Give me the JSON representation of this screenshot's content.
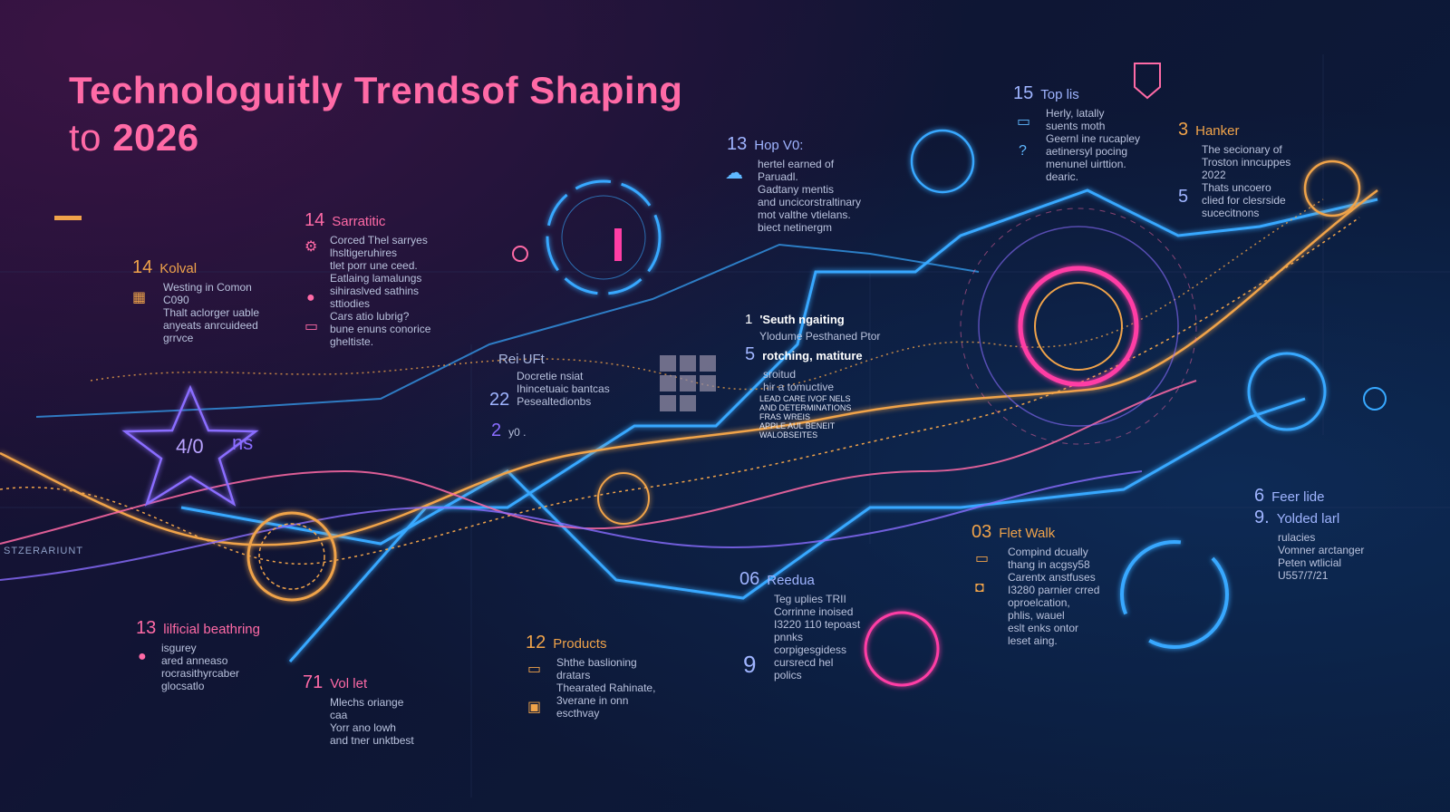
{
  "title": {
    "line1": "Technologuitly Trendsof Shaping",
    "line2_prefix": "to ",
    "line2_year": "2026"
  },
  "blocks": {
    "b14k": {
      "num": "14",
      "label": "Kolval",
      "text": "Westing in Comon\nC090\nThalt aclorger uable\nanyeats anrcuideed\ngrrvce"
    },
    "b14s": {
      "num": "14",
      "label": "Sarratitic",
      "text": "Corced Thel sarryes\nlhsltigeruhires\ntlet porr une ceed.\nEatlaing lamalungs\nsihiraslved sathins\nsttiodies\nCars atio lubrig?\nbune enuns conorice\ngheltiste."
    },
    "b13h": {
      "num": "13",
      "label": "Hop V0:",
      "text": "hertel earned of\nParuadl.\nGadtany mentis\nand uncicorstraltinary\nmot valthe vtielans.\nbiect netinergm"
    },
    "b15": {
      "num": "15",
      "label": "Top lis",
      "text": "Herly, latally\nsuents moth\nGeernl ine rucapley\naetinersyl pocing\nmenunel uirttion.\ndearic."
    },
    "b3": {
      "num": "3",
      "label": "Hanker",
      "text": "The secionary of\nTroston inncuppes\n2022\nThats uncoero\nclied for clesrside\nsucecitnons"
    },
    "b5n": {
      "num": "5"
    },
    "bsouth": {
      "num": "1",
      "label": "'Seuth ngaiting",
      "text": "Ylodume Pesthaned Ptor"
    },
    "bmat": {
      "num": "5",
      "label": "rotching, matiture",
      "text": "sroitud\nhir a tomuctive"
    },
    "bcaps": {
      "text": "LEAD CARE IVOF NELS\nAND DETERMINATIONS\nFRAS WREIS\nAPPLE AUL BENEIT\nWALOBSEITES"
    },
    "brei": {
      "label": "Rei UFt",
      "text": "Docretie nsiat\nIhincetuaic bantcas"
    },
    "b22": {
      "num": "22",
      "text": "Pesealtedionbs"
    },
    "b2": {
      "num": "2",
      "text": "y0 ."
    },
    "big2": "2",
    "b40": {
      "num": "4/0"
    },
    "bns": {
      "label": "ns"
    },
    "b6": {
      "num": "6",
      "label": "Feer lide"
    },
    "b9": {
      "num": "9.",
      "label": "Yolded larl",
      "text": "rulacies\nVomner arctanger\nPeten wtlicial\nU557/7/21"
    },
    "b03": {
      "num": "03",
      "label": "Flet Walk",
      "text": "Compind dcually\nthang in acgsy58\nCarentx anstfuses\nI3280 parnier crred\noproelcation,\nphlis, wauel\neslt enks ontor\nleset aing."
    },
    "b06": {
      "num": "06",
      "label": "Reedua",
      "text": "Teg uplies TRII\nCorrinne inoised\nI3220 110 tepoast\npnnks\ncorpigesgidess\ncursrecd hel\npolics"
    },
    "b9b": {
      "num": "9"
    },
    "b12": {
      "num": "12",
      "label": "Products",
      "text": "Shthe baslioning\ndratars\nThearated Rahinate,\n3verane in onn\nescthvay"
    },
    "b13a": {
      "num": "13",
      "label": "lilficial beathring",
      "text": "isgurey\nared anneaso\nrocrasithyrcaber\nglocsatlo"
    },
    "b71": {
      "num": "71",
      "label": "Vol let",
      "text": "Mlechs oriange\ncaa\nYorr ano lowh\nand tner unktbest"
    },
    "side_label": "STZERARIUNT"
  },
  "colors": {
    "pink": "#ff6aa6",
    "orange": "#f0a34a",
    "blue": "#37a8ff",
    "purple": "#8a6dff"
  },
  "icons": [
    "gear-icon",
    "lightbulb-icon",
    "globe-icon",
    "target-icon",
    "chat-icon",
    "monitor-icon",
    "star-icon",
    "alarm-icon"
  ]
}
